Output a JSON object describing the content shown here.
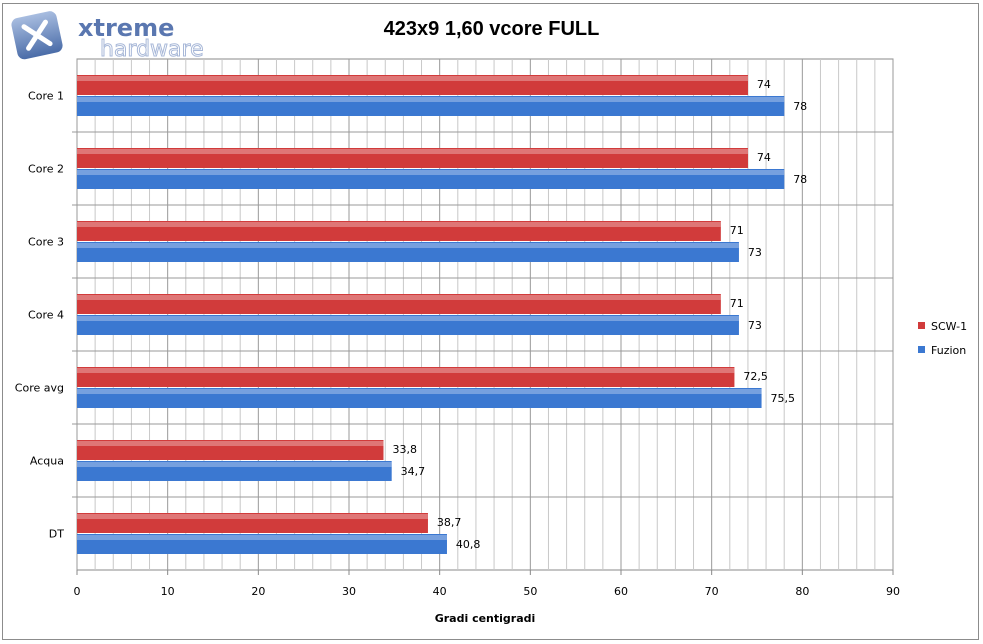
{
  "chart_data": {
    "type": "bar",
    "orientation": "horizontal",
    "title": "423x9 1,60 vcore FULL",
    "xlabel": "Gradi centigradi",
    "ylabel": "",
    "categories": [
      "Core 1",
      "Core 2",
      "Core 3",
      "Core 4",
      "Core avg",
      "Acqua",
      "DT"
    ],
    "series": [
      {
        "name": "SCW-1",
        "color": "#d13b3b",
        "values": [
          74,
          74,
          71,
          71,
          72.5,
          33.8,
          38.7
        ],
        "labels": [
          "74",
          "74",
          "71",
          "71",
          "72,5",
          "33,8",
          "38,7"
        ]
      },
      {
        "name": "Fuzion",
        "color": "#3b78d1",
        "values": [
          78,
          78,
          73,
          73,
          75.5,
          34.7,
          40.8
        ],
        "labels": [
          "78",
          "78",
          "73",
          "73",
          "75,5",
          "34,7",
          "40,8"
        ]
      }
    ],
    "xlim": [
      0,
      90
    ],
    "xticks": [
      "0",
      "10",
      "20",
      "30",
      "40",
      "50",
      "60",
      "70",
      "80",
      "90"
    ],
    "grid": true,
    "legend": "right"
  },
  "logo": {
    "text1": "xtreme",
    "text2": "hardware"
  }
}
